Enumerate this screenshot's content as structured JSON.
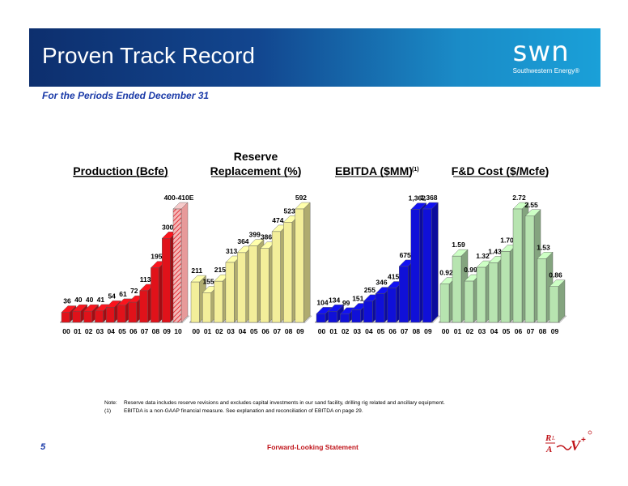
{
  "header": {
    "title": "Proven Track Record",
    "logo_text": "swn",
    "logo_subtext": "Southwestern Energy®"
  },
  "subtitle": "For the Periods Ended December 31",
  "chart_data": [
    {
      "type": "bar",
      "title": "Production (Bcfe)",
      "categories": [
        "00",
        "01",
        "02",
        "03",
        "04",
        "05",
        "06",
        "07",
        "08",
        "09",
        "10"
      ],
      "values": [
        36,
        40,
        40,
        41,
        54,
        61,
        72,
        113,
        195,
        300,
        405
      ],
      "labels": [
        "36",
        "40",
        "40",
        "41",
        "54",
        "61",
        "72",
        "113",
        "195",
        "300",
        "400-410E"
      ],
      "color": "#e0121a",
      "last_bar_hatched": true
    },
    {
      "type": "bar",
      "title": "Reserve Replacement (%)",
      "categories": [
        "00",
        "01",
        "02",
        "03",
        "04",
        "05",
        "06",
        "07",
        "08",
        "09"
      ],
      "values": [
        211,
        155,
        215,
        313,
        364,
        399,
        386,
        474,
        523,
        592
      ],
      "labels": [
        "211",
        "155",
        "215",
        "313",
        "364",
        "399",
        "386",
        "474",
        "523",
        "592"
      ],
      "color": "#f3ee9a"
    },
    {
      "type": "bar",
      "title": "EBITDA ($MM)",
      "title_sup": "(1)",
      "categories": [
        "00",
        "01",
        "02",
        "03",
        "04",
        "05",
        "06",
        "07",
        "08",
        "09"
      ],
      "values": [
        104,
        134,
        99,
        151,
        255,
        346,
        415,
        675,
        1362,
        1368
      ],
      "labels": [
        "104",
        "134",
        "99",
        "151",
        "255",
        "346",
        "415",
        "675",
        "1,362",
        "1,368"
      ],
      "color": "#1010d8"
    },
    {
      "type": "bar",
      "title": "F&D Cost ($/Mcfe)",
      "categories": [
        "00",
        "01",
        "02",
        "03",
        "04",
        "05",
        "06",
        "07",
        "08",
        "09"
      ],
      "values": [
        0.92,
        1.59,
        0.99,
        1.32,
        1.43,
        1.7,
        2.72,
        2.55,
        1.53,
        0.86
      ],
      "labels": [
        "0.92",
        "1.59",
        "0.99",
        "1.32",
        "1.43",
        "1.70",
        "2.72",
        "2.55",
        "1.53",
        "0.86"
      ],
      "color": "#b7e4b0"
    }
  ],
  "chart_titles": {
    "production": "Production (Bcfe)",
    "reserve_line1": "Reserve",
    "reserve_line2": "Replacement (%)",
    "ebitda": "EBITDA ($MM)",
    "ebitda_sup": "(1)",
    "fd": "F&D Cost ($/Mcfe)"
  },
  "notes": [
    {
      "tag": "Note:",
      "text": "Reserve data includes reserve revisions and excludes capital investments in our sand facility, drilling rig related and ancillary equipment."
    },
    {
      "tag": "(1)",
      "text": "EBITDA is a non-GAAP financial measure.  See explanation and reconciliation of EBITDA on page 29."
    }
  ],
  "footer": {
    "page_number": "5",
    "forward_looking": "Forward-Looking Statement"
  }
}
